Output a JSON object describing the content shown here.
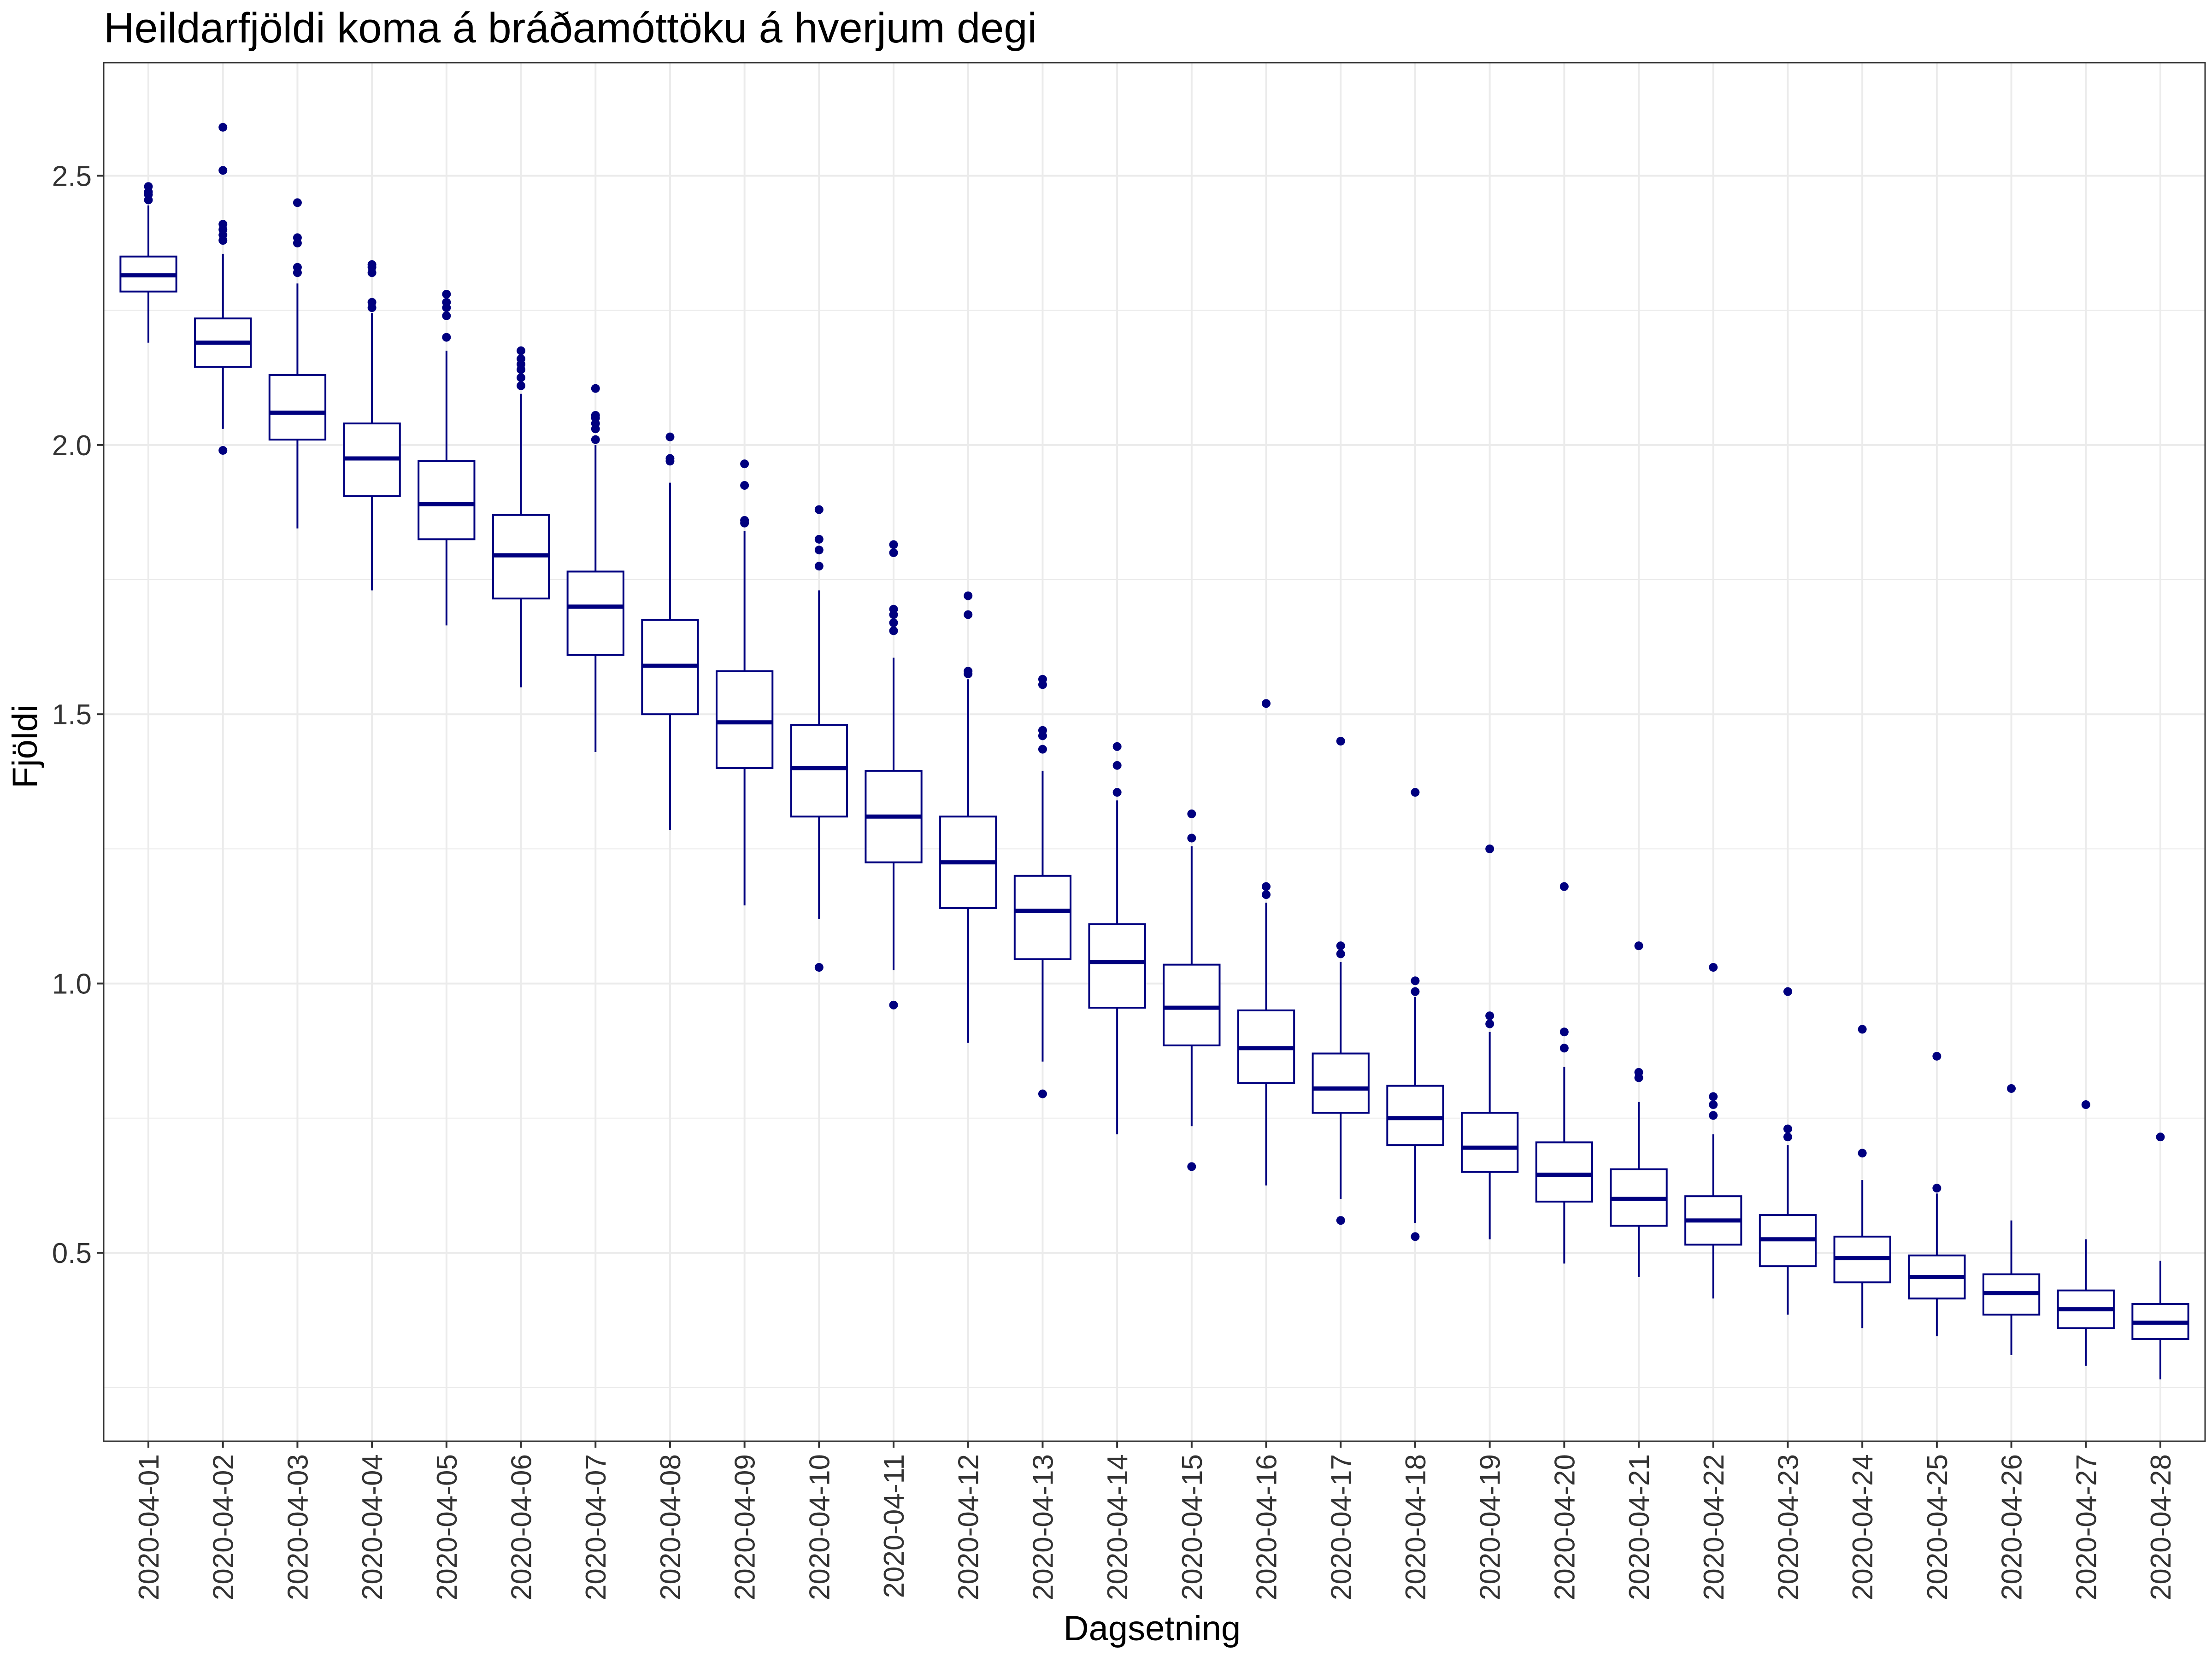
{
  "chart_data": {
    "type": "box",
    "title": "Heildarfjöldi koma á bráðamóttöku á hverjum degi",
    "xlabel": "Dagsetning",
    "ylabel": "Fjöldi",
    "ylim": [
      0.15,
      2.71
    ],
    "yticks": [
      0.5,
      1.0,
      1.5,
      2.0,
      2.5
    ],
    "ytick_labels": [
      "0.5",
      "1.0",
      "1.5",
      "2.0",
      "2.5"
    ],
    "grid": true,
    "legend": "none",
    "colors": {
      "box": "#00007f",
      "fill": "#ffffff",
      "grid": "#ebebeb",
      "panel_border": "#333333"
    },
    "categories": [
      "2020-04-01",
      "2020-04-02",
      "2020-04-03",
      "2020-04-04",
      "2020-04-05",
      "2020-04-06",
      "2020-04-07",
      "2020-04-08",
      "2020-04-09",
      "2020-04-10",
      "2020-04-11",
      "2020-04-12",
      "2020-04-13",
      "2020-04-14",
      "2020-04-15",
      "2020-04-16",
      "2020-04-17",
      "2020-04-18",
      "2020-04-19",
      "2020-04-20",
      "2020-04-21",
      "2020-04-22",
      "2020-04-23",
      "2020-04-24",
      "2020-04-25",
      "2020-04-26",
      "2020-04-27",
      "2020-04-28"
    ],
    "boxes": [
      {
        "whisker_low": 2.19,
        "q1": 2.285,
        "median": 2.315,
        "q3": 2.35,
        "whisker_high": 2.445,
        "outliers": [
          2.455,
          2.465,
          2.47,
          2.48
        ]
      },
      {
        "whisker_low": 2.03,
        "q1": 2.145,
        "median": 2.19,
        "q3": 2.235,
        "whisker_high": 2.355,
        "outliers": [
          1.99,
          2.38,
          2.39,
          2.4,
          2.41,
          2.51,
          2.59
        ]
      },
      {
        "whisker_low": 1.845,
        "q1": 2.01,
        "median": 2.06,
        "q3": 2.13,
        "whisker_high": 2.3,
        "outliers": [
          2.32,
          2.33,
          2.375,
          2.385,
          2.45
        ]
      },
      {
        "whisker_low": 1.73,
        "q1": 1.905,
        "median": 1.975,
        "q3": 2.04,
        "whisker_high": 2.245,
        "outliers": [
          2.255,
          2.265,
          2.32,
          2.33,
          2.335
        ]
      },
      {
        "whisker_low": 1.665,
        "q1": 1.825,
        "median": 1.89,
        "q3": 1.97,
        "whisker_high": 2.175,
        "outliers": [
          2.2,
          2.24,
          2.255,
          2.265,
          2.28
        ]
      },
      {
        "whisker_low": 1.55,
        "q1": 1.715,
        "median": 1.795,
        "q3": 1.87,
        "whisker_high": 2.095,
        "outliers": [
          2.11,
          2.125,
          2.14,
          2.15,
          2.16,
          2.175
        ]
      },
      {
        "whisker_low": 1.43,
        "q1": 1.61,
        "median": 1.7,
        "q3": 1.765,
        "whisker_high": 2.0,
        "outliers": [
          2.01,
          2.03,
          2.04,
          2.05,
          2.055,
          2.105
        ]
      },
      {
        "whisker_low": 1.285,
        "q1": 1.5,
        "median": 1.59,
        "q3": 1.675,
        "whisker_high": 1.93,
        "outliers": [
          1.97,
          1.975,
          2.015
        ]
      },
      {
        "whisker_low": 1.145,
        "q1": 1.4,
        "median": 1.485,
        "q3": 1.58,
        "whisker_high": 1.84,
        "outliers": [
          1.855,
          1.86,
          1.925,
          1.965
        ]
      },
      {
        "whisker_low": 1.12,
        "q1": 1.31,
        "median": 1.4,
        "q3": 1.48,
        "whisker_high": 1.73,
        "outliers": [
          1.03,
          1.775,
          1.805,
          1.825,
          1.88
        ]
      },
      {
        "whisker_low": 1.025,
        "q1": 1.225,
        "median": 1.31,
        "q3": 1.395,
        "whisker_high": 1.605,
        "outliers": [
          0.96,
          1.655,
          1.67,
          1.685,
          1.695,
          1.8,
          1.815
        ]
      },
      {
        "whisker_low": 0.89,
        "q1": 1.14,
        "median": 1.225,
        "q3": 1.31,
        "whisker_high": 1.565,
        "outliers": [
          1.575,
          1.58,
          1.685,
          1.72
        ]
      },
      {
        "whisker_low": 0.855,
        "q1": 1.045,
        "median": 1.135,
        "q3": 1.2,
        "whisker_high": 1.395,
        "outliers": [
          0.795,
          1.435,
          1.46,
          1.47,
          1.555,
          1.565
        ]
      },
      {
        "whisker_low": 0.72,
        "q1": 0.955,
        "median": 1.04,
        "q3": 1.11,
        "whisker_high": 1.34,
        "outliers": [
          1.355,
          1.405,
          1.44
        ]
      },
      {
        "whisker_low": 0.735,
        "q1": 0.885,
        "median": 0.955,
        "q3": 1.035,
        "whisker_high": 1.255,
        "outliers": [
          0.66,
          1.27,
          1.315
        ]
      },
      {
        "whisker_low": 0.625,
        "q1": 0.815,
        "median": 0.88,
        "q3": 0.95,
        "whisker_high": 1.15,
        "outliers": [
          1.165,
          1.18,
          1.52
        ]
      },
      {
        "whisker_low": 0.6,
        "q1": 0.76,
        "median": 0.805,
        "q3": 0.87,
        "whisker_high": 1.04,
        "outliers": [
          0.56,
          1.055,
          1.07,
          1.45
        ]
      },
      {
        "whisker_low": 0.555,
        "q1": 0.7,
        "median": 0.75,
        "q3": 0.81,
        "whisker_high": 0.975,
        "outliers": [
          0.53,
          0.985,
          1.005,
          1.355
        ]
      },
      {
        "whisker_low": 0.525,
        "q1": 0.65,
        "median": 0.695,
        "q3": 0.76,
        "whisker_high": 0.91,
        "outliers": [
          0.925,
          0.94,
          1.25
        ]
      },
      {
        "whisker_low": 0.48,
        "q1": 0.595,
        "median": 0.645,
        "q3": 0.705,
        "whisker_high": 0.845,
        "outliers": [
          0.88,
          0.91,
          1.18
        ]
      },
      {
        "whisker_low": 0.455,
        "q1": 0.55,
        "median": 0.6,
        "q3": 0.655,
        "whisker_high": 0.78,
        "outliers": [
          0.825,
          0.835,
          1.07
        ]
      },
      {
        "whisker_low": 0.415,
        "q1": 0.515,
        "median": 0.56,
        "q3": 0.605,
        "whisker_high": 0.72,
        "outliers": [
          0.755,
          0.775,
          0.79,
          1.03
        ]
      },
      {
        "whisker_low": 0.385,
        "q1": 0.475,
        "median": 0.525,
        "q3": 0.57,
        "whisker_high": 0.7,
        "outliers": [
          0.715,
          0.73,
          0.985
        ]
      },
      {
        "whisker_low": 0.36,
        "q1": 0.445,
        "median": 0.49,
        "q3": 0.53,
        "whisker_high": 0.635,
        "outliers": [
          0.685,
          0.915
        ]
      },
      {
        "whisker_low": 0.345,
        "q1": 0.415,
        "median": 0.455,
        "q3": 0.495,
        "whisker_high": 0.61,
        "outliers": [
          0.62,
          0.865
        ]
      },
      {
        "whisker_low": 0.31,
        "q1": 0.385,
        "median": 0.425,
        "q3": 0.46,
        "whisker_high": 0.56,
        "outliers": [
          0.805
        ]
      },
      {
        "whisker_low": 0.29,
        "q1": 0.36,
        "median": 0.395,
        "q3": 0.43,
        "whisker_high": 0.525,
        "outliers": [
          0.775
        ]
      },
      {
        "whisker_low": 0.265,
        "q1": 0.34,
        "median": 0.37,
        "q3": 0.405,
        "whisker_high": 0.485,
        "outliers": [
          0.715
        ]
      }
    ]
  }
}
